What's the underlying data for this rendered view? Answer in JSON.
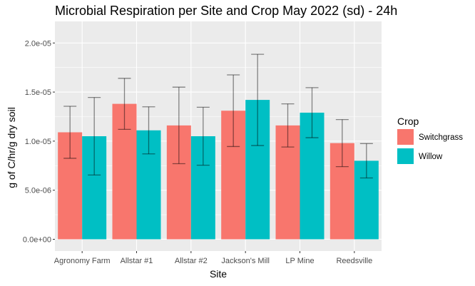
{
  "chart_data": {
    "type": "bar",
    "title": "Microbial Respiration per Site and Crop May 2022 (sd) - 24h",
    "xlabel": "Site",
    "ylabel": "g of C/hr/g dry soil",
    "categories": [
      "Agronomy Farm",
      "Allstar #1",
      "Allstar #2",
      "Jackson's Mill",
      "LP Mine",
      "Reedsville"
    ],
    "series": [
      {
        "name": "Switchgrass",
        "color": "#F8766D",
        "values": [
          1.09e-05,
          1.38e-05,
          1.16e-05,
          1.31e-05,
          1.16e-05,
          9.8e-06
        ],
        "error": [
          2.65e-06,
          2.6e-06,
          3.9e-06,
          3.65e-06,
          2.2e-06,
          2.4e-06
        ]
      },
      {
        "name": "Willow",
        "color": "#00BFC4",
        "values": [
          1.05e-05,
          1.11e-05,
          1.05e-05,
          1.42e-05,
          1.29e-05,
          8e-06
        ],
        "error": [
          3.95e-06,
          2.4e-06,
          2.95e-06,
          4.65e-06,
          2.55e-06,
          1.75e-06
        ]
      }
    ],
    "ylim": [
      -1.2e-06,
      2.22e-05
    ],
    "yticks": [
      0,
      5e-06,
      1e-05,
      1.5e-05,
      2e-05
    ],
    "ytick_labels": [
      "0.0e+00",
      "5.0e-06",
      "1.0e-05",
      "1.5e-05",
      "2.0e-05"
    ],
    "grid": true,
    "legend": {
      "title": "Crop",
      "position": "right"
    }
  }
}
